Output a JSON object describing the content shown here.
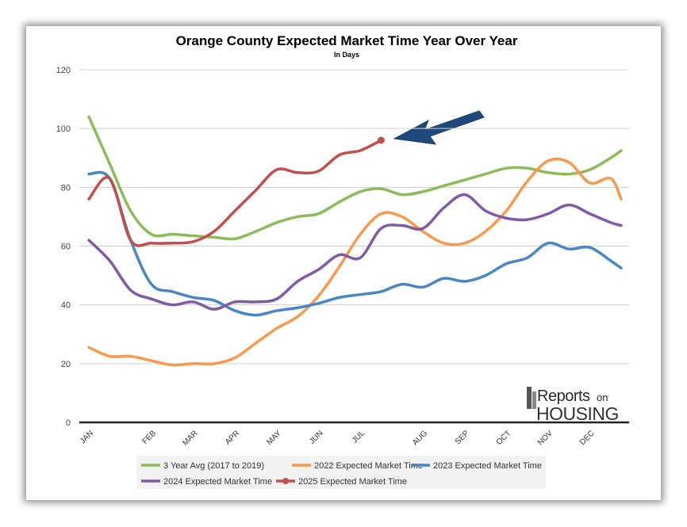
{
  "chart_data": {
    "type": "line",
    "title": "Orange County Expected Market Time Year Over Year",
    "subtitle": "In Days",
    "x": [
      0,
      2,
      4,
      6,
      8,
      10,
      12,
      14,
      16,
      18,
      20,
      22,
      24,
      26,
      28,
      30,
      32,
      34,
      36,
      38,
      40,
      42,
      44,
      46,
      48,
      50,
      51
    ],
    "xlim": [
      0,
      51
    ],
    "xticks": [
      {
        "value": 0,
        "label": "JAN"
      },
      {
        "value": 6,
        "label": "FEB"
      },
      {
        "value": 10,
        "label": "MAR"
      },
      {
        "value": 14,
        "label": "APR"
      },
      {
        "value": 18,
        "label": "MAY"
      },
      {
        "value": 22,
        "label": "JUN"
      },
      {
        "value": 26,
        "label": "JUL"
      },
      {
        "value": 32,
        "label": "AUG"
      },
      {
        "value": 36,
        "label": "SEP"
      },
      {
        "value": 40,
        "label": "OCT"
      },
      {
        "value": 44,
        "label": "NOV"
      },
      {
        "value": 48,
        "label": "DEC"
      }
    ],
    "ylim": [
      0,
      120
    ],
    "yticks": [
      0,
      20,
      40,
      60,
      80,
      100,
      120
    ],
    "grid": true,
    "legend": "bottom",
    "series": [
      {
        "name": "3 Year Avg (2017 to 2019)",
        "color": "#8dbb5a",
        "values": [
          104,
          88,
          72,
          64,
          64,
          63.5,
          63,
          62.5,
          65,
          68,
          70,
          71,
          75,
          78.5,
          79.5,
          77.5,
          78.5,
          80.5,
          82.5,
          84.5,
          86.5,
          86.5,
          85,
          84.5,
          86,
          90,
          92.5
        ]
      },
      {
        "name": "2022 Expected Market Time",
        "color": "#f79a4d",
        "values": [
          25.5,
          22.5,
          22.5,
          21,
          19.5,
          20,
          20,
          22,
          27,
          32,
          36,
          43,
          53,
          64,
          71,
          70,
          65,
          61,
          61,
          65,
          72,
          82,
          89,
          88.5,
          81.5,
          83,
          76
        ]
      },
      {
        "name": "2023 Expected Market Time",
        "color": "#4a86c5",
        "values": [
          84.5,
          83,
          62,
          47,
          44.5,
          42.5,
          41.5,
          38,
          36.5,
          38,
          39,
          40.5,
          42.5,
          43.5,
          44.5,
          47,
          46,
          49,
          48,
          50,
          54,
          56,
          61,
          59,
          59.5,
          55,
          52.5
        ]
      },
      {
        "name": "2024 Expected Market Time",
        "color": "#7f5ba6",
        "values": [
          62,
          55,
          45,
          42,
          40,
          41,
          38.5,
          41,
          41,
          42,
          48,
          52,
          57,
          56,
          66,
          67,
          66,
          73,
          77.5,
          72,
          69.5,
          69,
          71,
          74,
          71,
          68,
          67
        ]
      },
      {
        "name": "2025 Expected Market Time",
        "color": "#c0504d",
        "marker_last": true,
        "values": [
          76,
          83,
          62,
          61,
          61,
          61.5,
          65,
          72,
          79,
          86,
          85,
          85.5,
          91,
          92.5,
          96,
          null,
          null,
          null,
          null,
          null,
          null,
          null,
          null,
          null,
          null,
          null,
          null
        ]
      }
    ],
    "logo": {
      "line1": "Reports",
      "line2": "on",
      "line3": "HOUSING"
    }
  }
}
